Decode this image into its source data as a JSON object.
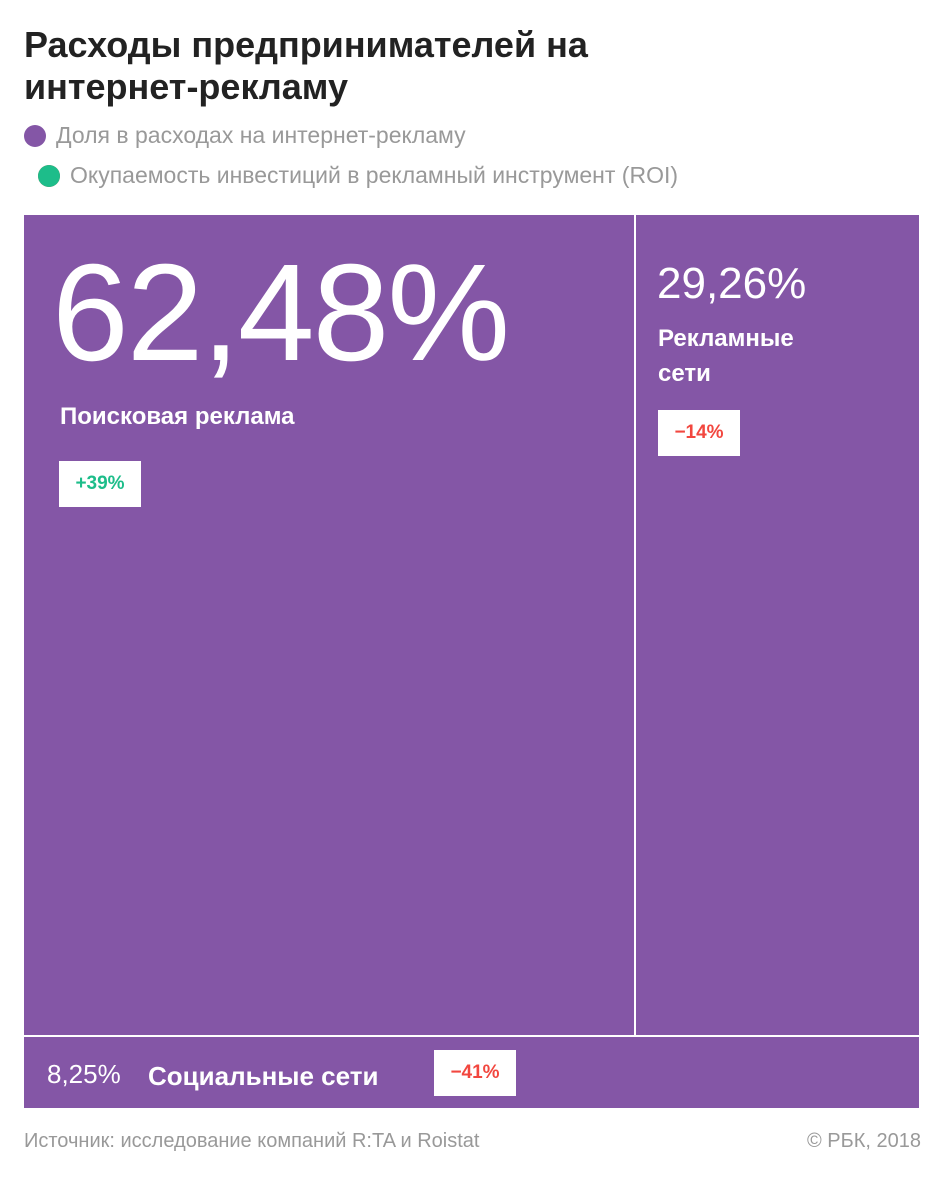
{
  "title": "Расходы предпринимателей на интернет-рекламу",
  "legend": [
    {
      "label": "Доля в расходах на интернет-рекламу",
      "color": "#8456a6"
    },
    {
      "label": "Окупаемость инвестиций в рекламный инструмент (ROI)",
      "colors": [
        "#1dbd8a",
        "#f2473f"
      ]
    }
  ],
  "chart_data": {
    "type": "treemap",
    "title": "Расходы предпринимателей на интернет-рекламу",
    "items": [
      {
        "name": "Поисковая реклама",
        "share": 62.48,
        "share_label": "62,48%",
        "roi": 39,
        "roi_label": "+39%"
      },
      {
        "name": "Рекламные сети",
        "share": 29.26,
        "share_label": "29,26%",
        "roi": -14,
        "roi_label": "−14%"
      },
      {
        "name": "Социальные сети",
        "share": 8.25,
        "share_label": "8,25%",
        "roi": -41,
        "roi_label": "−41%"
      }
    ],
    "colors": {
      "tile": "#8456a6",
      "positive": "#1dbd8a",
      "negative": "#f2473f"
    }
  },
  "footer": {
    "source": "Источник: исследование компаний R:TA и Roistat",
    "copyright": "© РБК, 2018"
  }
}
